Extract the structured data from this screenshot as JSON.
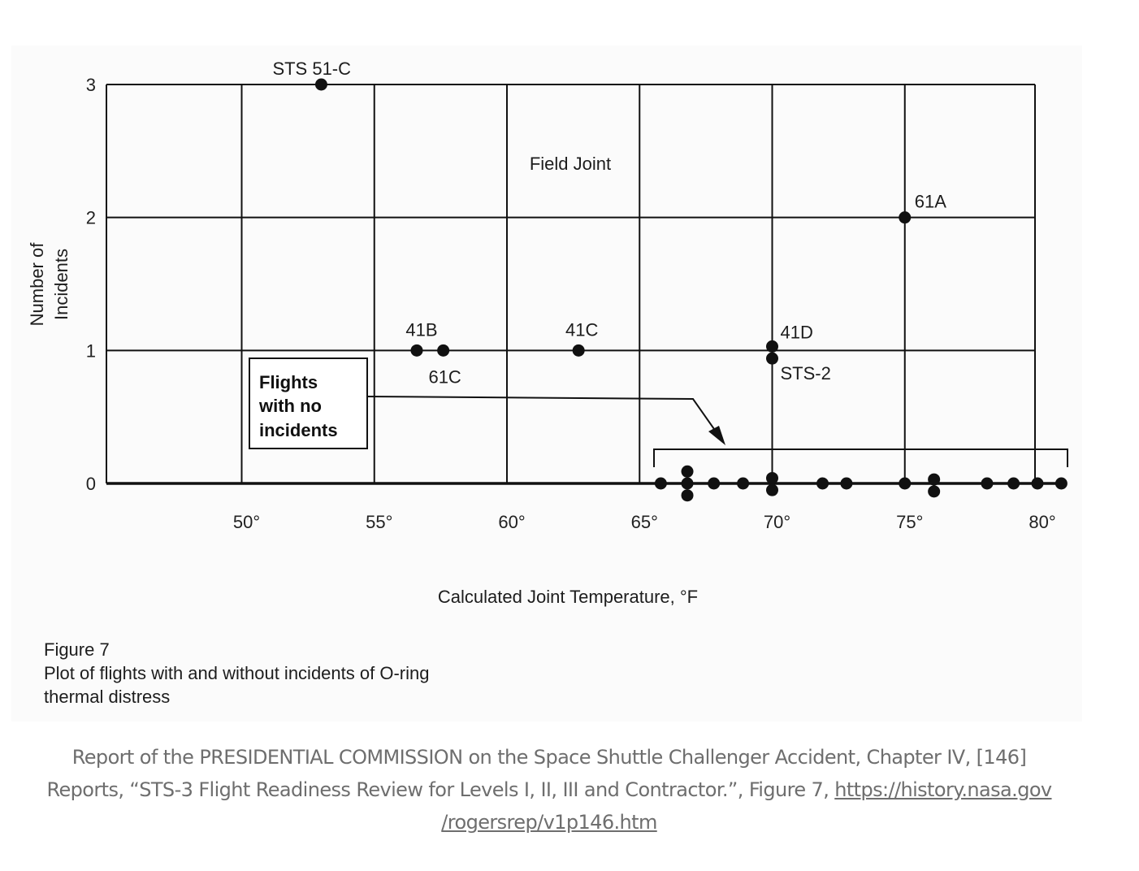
{
  "chart_data": {
    "type": "scatter",
    "title": "",
    "xlabel": "Calculated Joint Temperature, °F",
    "ylabel": "Number of Incidents",
    "ylabel_lines": [
      "Number of",
      "Incidents"
    ],
    "xlim": [
      45,
      81
    ],
    "ylim": [
      0,
      3
    ],
    "xticks": [
      50,
      55,
      60,
      65,
      70,
      75,
      80
    ],
    "xtick_labels": [
      "50°",
      "55°",
      "60°",
      "65°",
      "70°",
      "75°",
      "80°"
    ],
    "yticks": [
      0,
      1,
      2,
      3
    ],
    "ytick_labels": [
      "0",
      "1",
      "2",
      "3"
    ],
    "grid": true,
    "annotation_field_joint": "Field Joint",
    "box_label_lines": [
      "Flights",
      "with no",
      "incidents"
    ],
    "points_with_incidents": [
      {
        "label": "STS 51-C",
        "x": 53,
        "y": 3
      },
      {
        "label": "61A",
        "x": 75,
        "y": 2
      },
      {
        "label": "41B",
        "x": 56.6,
        "y": 1
      },
      {
        "label": "61C",
        "x": 57.6,
        "y": 1
      },
      {
        "label": "41C",
        "x": 62.7,
        "y": 1
      },
      {
        "label": "41D",
        "x": 70,
        "y": 1.03
      },
      {
        "label": "STS-2",
        "x": 70,
        "y": 0.94
      }
    ],
    "points_no_incidents": [
      {
        "x": 65.8,
        "y": 0
      },
      {
        "x": 66.8,
        "y": 0.09
      },
      {
        "x": 66.8,
        "y": 0
      },
      {
        "x": 66.8,
        "y": -0.09
      },
      {
        "x": 67.8,
        "y": 0
      },
      {
        "x": 68.9,
        "y": 0
      },
      {
        "x": 70,
        "y": 0.04
      },
      {
        "x": 70,
        "y": -0.05
      },
      {
        "x": 71.9,
        "y": 0
      },
      {
        "x": 72.8,
        "y": 0
      },
      {
        "x": 75,
        "y": 0
      },
      {
        "x": 76.1,
        "y": 0.03
      },
      {
        "x": 76.1,
        "y": -0.06
      },
      {
        "x": 78.1,
        "y": 0
      },
      {
        "x": 79.1,
        "y": 0
      },
      {
        "x": 80,
        "y": 0
      },
      {
        "x": 80.9,
        "y": 0
      }
    ]
  },
  "figure_caption": {
    "line1": "Figure 7",
    "line2": "Plot of flights with and without incidents of O-ring",
    "line3": "thermal distress"
  },
  "source_caption": {
    "line1": "Report of the PRESIDENTIAL COMMISSION on the Space Shuttle Challenger Accident, Chapter IV, [146]",
    "line2_text": "Reports, “STS-3 Flight Readiness Review for Levels I, II, III and Contractor.”, Figure 7, ",
    "link_part1": "https://history.nasa.gov",
    "link_part2": "/rogersrep/v1p146.htm"
  }
}
